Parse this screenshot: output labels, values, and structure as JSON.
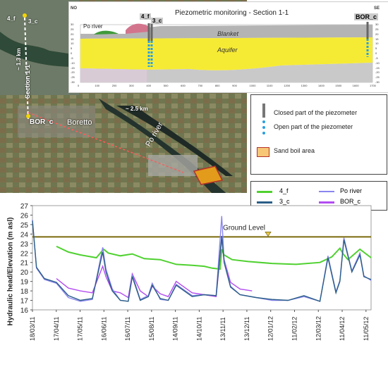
{
  "section": {
    "title": "Piezometric monitoring - Section 1-1",
    "corner_left": "NO",
    "corner_right": "SE",
    "layers": [
      "Po river",
      "Blanket",
      "Aquifer"
    ],
    "piezometers": [
      "4_f",
      "3_c",
      "BOR_c"
    ],
    "y_ticks": [
      30,
      25,
      20,
      15,
      10,
      5,
      0,
      -5,
      -10,
      -15,
      -20,
      -25,
      -30
    ],
    "x_ticks": [
      0,
      100,
      200,
      300,
      400,
      500,
      600,
      700,
      800,
      900,
      1000,
      1100,
      1200,
      1300,
      1400,
      1500,
      1600,
      1700
    ]
  },
  "map": {
    "labels": {
      "p4f": "4_f",
      "p3c": "3_c",
      "dist1": "~ 1.3 km",
      "section": "Section 1-1",
      "bor": "BOR_c",
      "town": "Boretto",
      "dist2": "~ 2.5 km",
      "river": "Po river"
    }
  },
  "legend_top": {
    "closed": "Closed part of the piezometer",
    "open": "Open part of the piezometer",
    "sand": "Sand boil area"
  },
  "legend_chart": {
    "items": [
      "4_f",
      "Po river",
      "3_c",
      "BOR_c"
    ],
    "colors": {
      "4_f": "#4fd12f",
      "Po river": "#8a86f0",
      "3_c": "#2a5e86",
      "BOR_c": "#b24df1",
      "ground": "#7a6a0b"
    }
  },
  "chart_data": {
    "type": "line",
    "ylabel": "Hydraulic head/Elevation (m asl)",
    "ylim": [
      16,
      27
    ],
    "y_ticks": [
      16,
      17,
      18,
      19,
      20,
      21,
      22,
      23,
      24,
      25,
      26,
      27
    ],
    "x_ticks": [
      "18/03/11",
      "17/04/11",
      "17/05/11",
      "16/06/11",
      "16/07/11",
      "15/08/11",
      "14/09/11",
      "14/10/11",
      "13/11/11",
      "13/12/11",
      "12/01/12",
      "11/02/12",
      "12/03/12",
      "11/04/12",
      "11/05/12"
    ],
    "ground_level": 23.7,
    "ground_label": "Ground Level",
    "series": [
      {
        "name": "4_f",
        "x": [
          30,
          45,
          60,
          80,
          89,
          95,
          110,
          125,
          140,
          160,
          180,
          200,
          215,
          225,
          235,
          237,
          240,
          250,
          270,
          300,
          330,
          360,
          375,
          385,
          389,
          395,
          410,
          424
        ],
        "values": [
          22.7,
          22.1,
          21.8,
          21.5,
          22.4,
          22.0,
          21.7,
          21.9,
          21.4,
          21.3,
          20.8,
          20.7,
          20.6,
          20.4,
          20.3,
          22.4,
          21.8,
          21.3,
          21.1,
          20.9,
          20.8,
          21.0,
          21.6,
          22.5,
          21.9,
          21.3,
          22.4,
          21.5
        ]
      },
      {
        "name": "3_c",
        "x": [
          0,
          5,
          15,
          30,
          45,
          60,
          75,
          88,
          92,
          100,
          110,
          120,
          125,
          135,
          145,
          150,
          160,
          170,
          180,
          200,
          215,
          230,
          237,
          240,
          248,
          260,
          280,
          300,
          320,
          340,
          360,
          370,
          380,
          385,
          390,
          400,
          410,
          415,
          424
        ],
        "values": [
          25.4,
          20.5,
          19.3,
          18.9,
          17.5,
          17.0,
          17.2,
          22.1,
          20.0,
          18.0,
          17.0,
          16.9,
          19.5,
          17.0,
          17.4,
          18.6,
          17.2,
          17.0,
          18.6,
          17.4,
          17.6,
          17.5,
          23.8,
          21.0,
          18.4,
          17.6,
          17.3,
          17.1,
          17.0,
          17.5,
          16.9,
          21.5,
          17.8,
          19.0,
          23.4,
          20.0,
          21.8,
          19.5,
          19.2
        ]
      },
      {
        "name": "Po river",
        "x": [
          0,
          5,
          15,
          30,
          45,
          60,
          75,
          88,
          92,
          100,
          110,
          120,
          125,
          135,
          145,
          150,
          160,
          170,
          180,
          200,
          215,
          230,
          237,
          240,
          248,
          260,
          280,
          300,
          320,
          340,
          360,
          370,
          380,
          385,
          390,
          400,
          410,
          415,
          424
        ],
        "values": [
          25.5,
          20.4,
          19.2,
          18.8,
          17.3,
          16.9,
          17.1,
          22.6,
          20.3,
          18.2,
          17.0,
          16.9,
          19.7,
          17.1,
          17.5,
          18.8,
          17.1,
          17.0,
          18.7,
          17.5,
          17.6,
          17.5,
          25.9,
          21.2,
          18.5,
          17.6,
          17.3,
          17.0,
          17.0,
          17.4,
          16.9,
          21.7,
          17.9,
          19.1,
          23.6,
          20.1,
          22.0,
          19.6,
          19.1
        ]
      },
      {
        "name": "BOR_c",
        "x": [
          30,
          45,
          60,
          75,
          88,
          92,
          100,
          110,
          120,
          125,
          135,
          145,
          150,
          160,
          170,
          180,
          200,
          215,
          230,
          237,
          240,
          248,
          260,
          275
        ],
        "values": [
          19.3,
          18.3,
          18.0,
          17.8,
          20.6,
          19.5,
          18.0,
          17.8,
          17.3,
          19.8,
          18.0,
          17.4,
          18.5,
          17.7,
          17.4,
          19.0,
          17.8,
          17.6,
          17.4,
          23.5,
          21.3,
          18.9,
          18.2,
          18.0
        ]
      }
    ]
  }
}
